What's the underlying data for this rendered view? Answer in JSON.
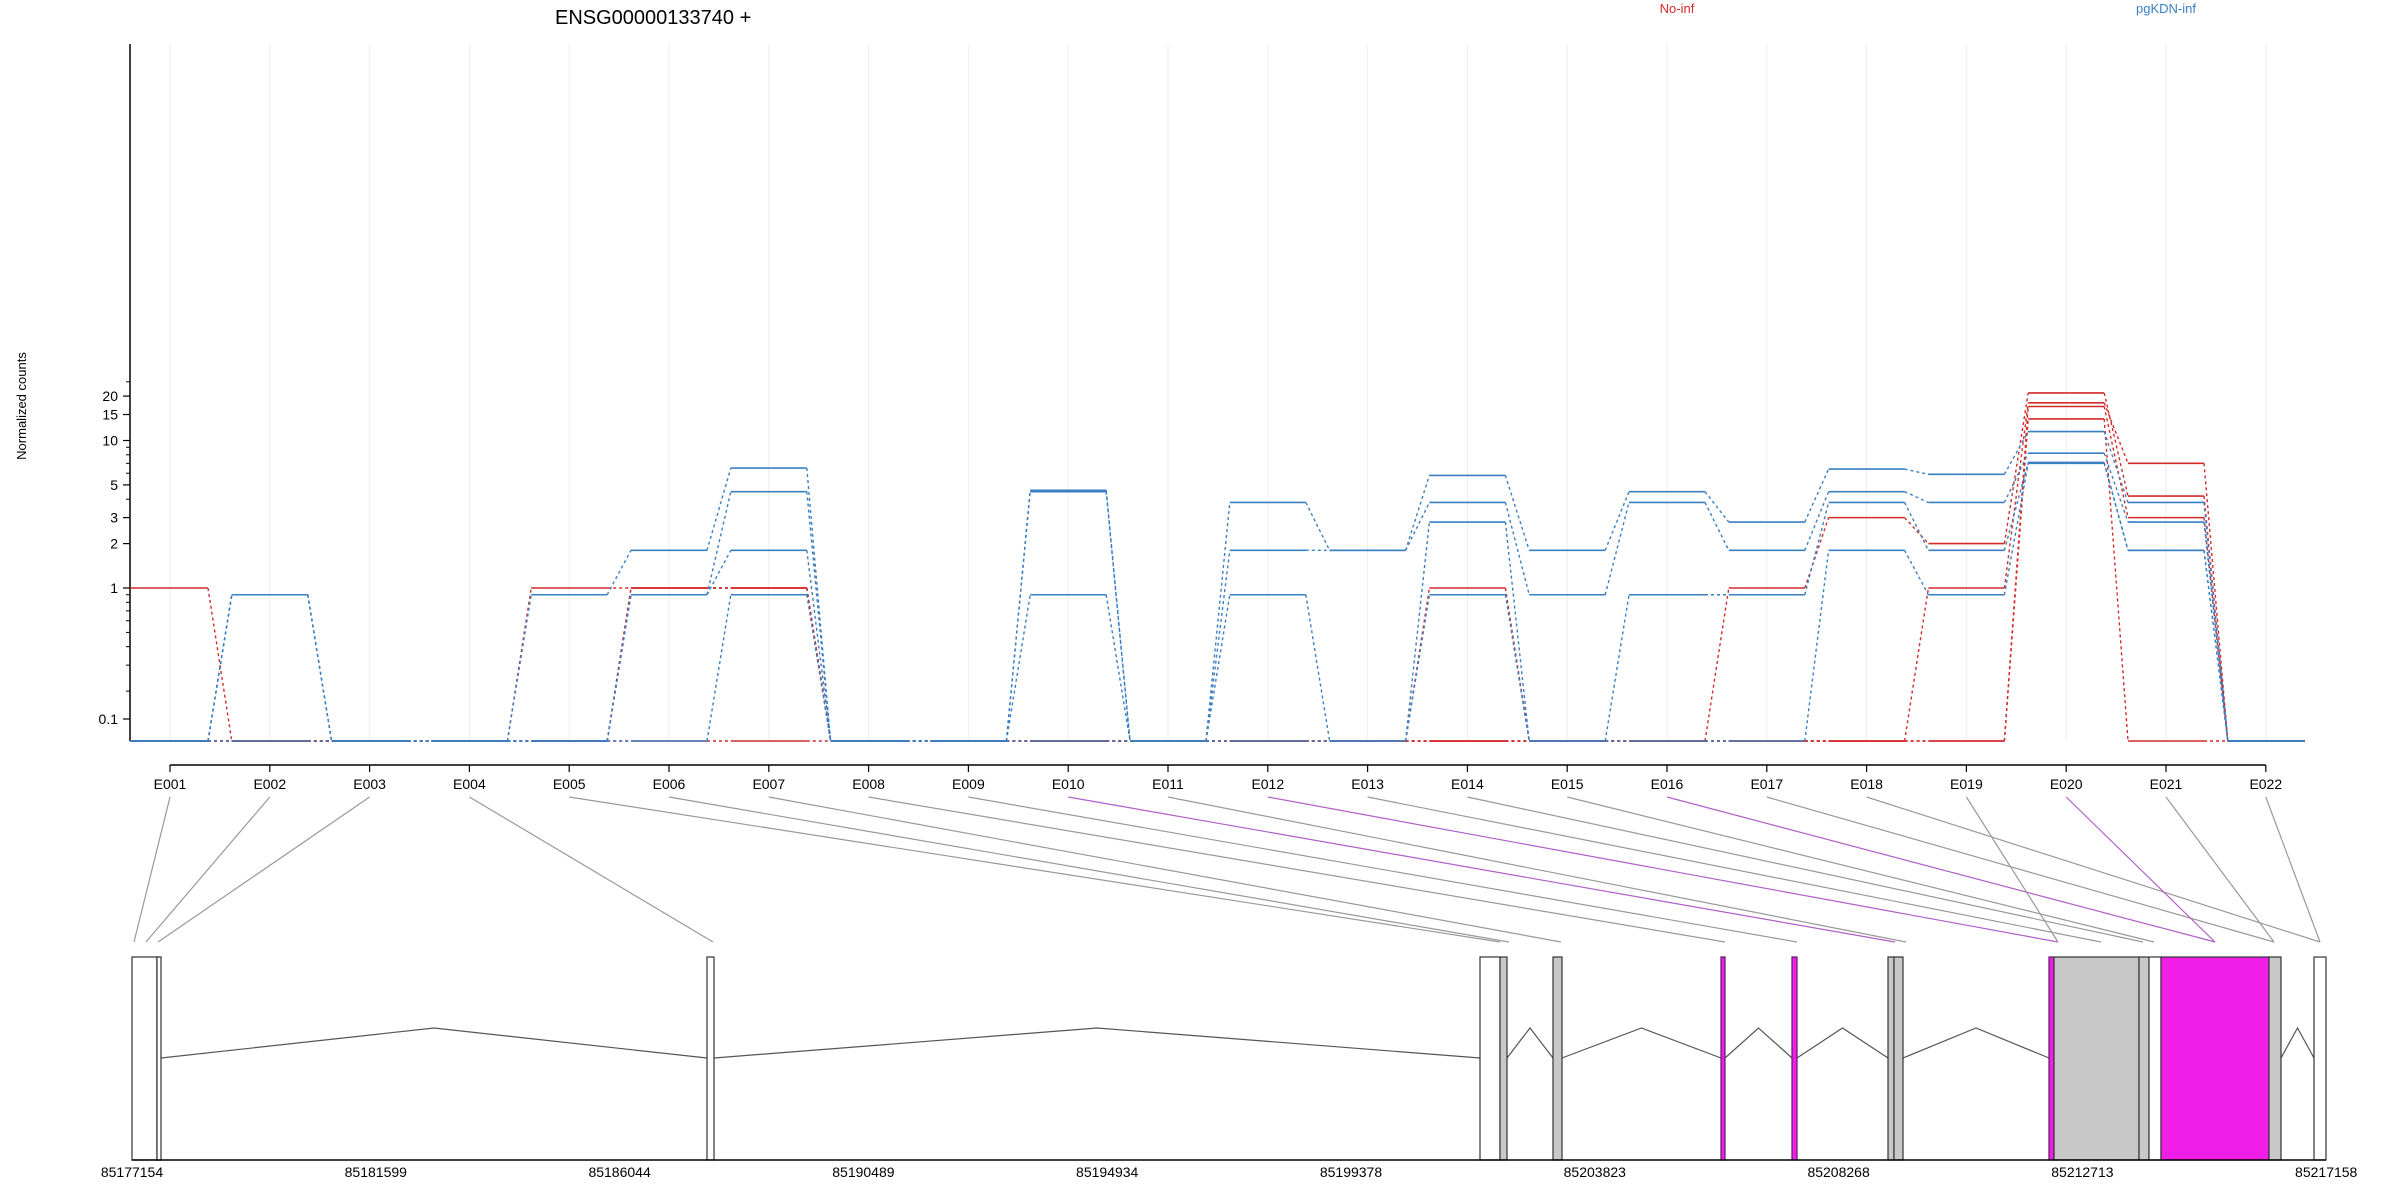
{
  "chart_data": {
    "type": "line",
    "title": "ENSG00000133740 +",
    "ylabel": "Normalized counts",
    "y_scale": "log",
    "y_ticks": [
      "0.1",
      "1",
      "2",
      "3",
      "5",
      "10",
      "15",
      "20"
    ],
    "y_tick_values": [
      0.1,
      1,
      2,
      3,
      5,
      10,
      15,
      20
    ],
    "exon_labels": [
      "E001",
      "E002",
      "E003",
      "E004",
      "E005",
      "E006",
      "E007",
      "E008",
      "E009",
      "E010",
      "E011",
      "E012",
      "E013",
      "E014",
      "E015",
      "E016",
      "E017",
      "E018",
      "E019",
      "E020",
      "E021",
      "E022"
    ],
    "coordinate_labels": [
      "85177154",
      "85181599",
      "85186044",
      "85190489",
      "85194934",
      "85199378",
      "85203823",
      "85208268",
      "85212713",
      "85217158"
    ],
    "groups": [
      {
        "name": "No-inf",
        "color": "#d42a2a"
      },
      {
        "name": "pgKDN-inf",
        "color": "#3a7fc2"
      }
    ],
    "series": [
      {
        "group": 0,
        "values": [
          1,
          0,
          0,
          0,
          1,
          1,
          1,
          0,
          0,
          0,
          0,
          0,
          0,
          1,
          0,
          0,
          1,
          3,
          2,
          21,
          4.2,
          0
        ]
      },
      {
        "group": 0,
        "values": [
          0,
          0,
          0,
          0,
          0,
          1,
          1,
          0,
          0,
          0,
          0,
          0,
          0,
          0,
          0,
          0,
          0,
          0,
          1,
          18,
          7,
          0
        ]
      },
      {
        "group": 0,
        "values": [
          0,
          0,
          0,
          0,
          0,
          1,
          1,
          0,
          0,
          0,
          0,
          0,
          0,
          0,
          0,
          0,
          0,
          0,
          0,
          17,
          3,
          0
        ]
      },
      {
        "group": 0,
        "values": [
          0,
          0,
          0,
          0,
          0,
          0,
          0,
          0,
          0,
          0,
          0,
          0,
          0,
          0,
          0,
          0,
          0,
          0,
          0,
          14,
          0,
          0
        ]
      },
      {
        "group": 1,
        "values": [
          0,
          0.9,
          0,
          0,
          0.9,
          1.8,
          6.5,
          0,
          0,
          4.6,
          0,
          3.8,
          1.8,
          5.8,
          1.8,
          4.5,
          2.8,
          6.4,
          5.9,
          11.5,
          3.8,
          0
        ]
      },
      {
        "group": 1,
        "values": [
          0,
          0.9,
          0,
          0,
          0,
          0.9,
          4.5,
          0,
          0,
          4.5,
          0,
          1.8,
          1.8,
          3.8,
          0.9,
          3.8,
          1.8,
          4.5,
          3.8,
          8.2,
          2.8,
          0
        ]
      },
      {
        "group": 1,
        "values": [
          0,
          0.9,
          0,
          0,
          0,
          0.9,
          1.8,
          0,
          0,
          0.9,
          0,
          0.9,
          0,
          2.8,
          0,
          0.9,
          0.9,
          3.8,
          1.8,
          7.1,
          1.8,
          0
        ]
      },
      {
        "group": 1,
        "values": [
          0,
          0,
          0,
          0,
          0,
          0,
          0.9,
          0,
          0,
          0,
          0,
          0,
          0,
          0.9,
          0,
          0,
          0,
          1.8,
          0.9,
          7.0,
          1.8,
          0
        ]
      }
    ],
    "gene_model": {
      "exon_fill_default": "#ffffff",
      "exon_fill_expressed": "#c8c8c8",
      "exon_fill_significant": "#f01ee6",
      "connector_default": "#999999",
      "connector_significant": "#b060c8",
      "significant_exons": [
        "E010",
        "E012",
        "E016",
        "E020"
      ]
    }
  }
}
